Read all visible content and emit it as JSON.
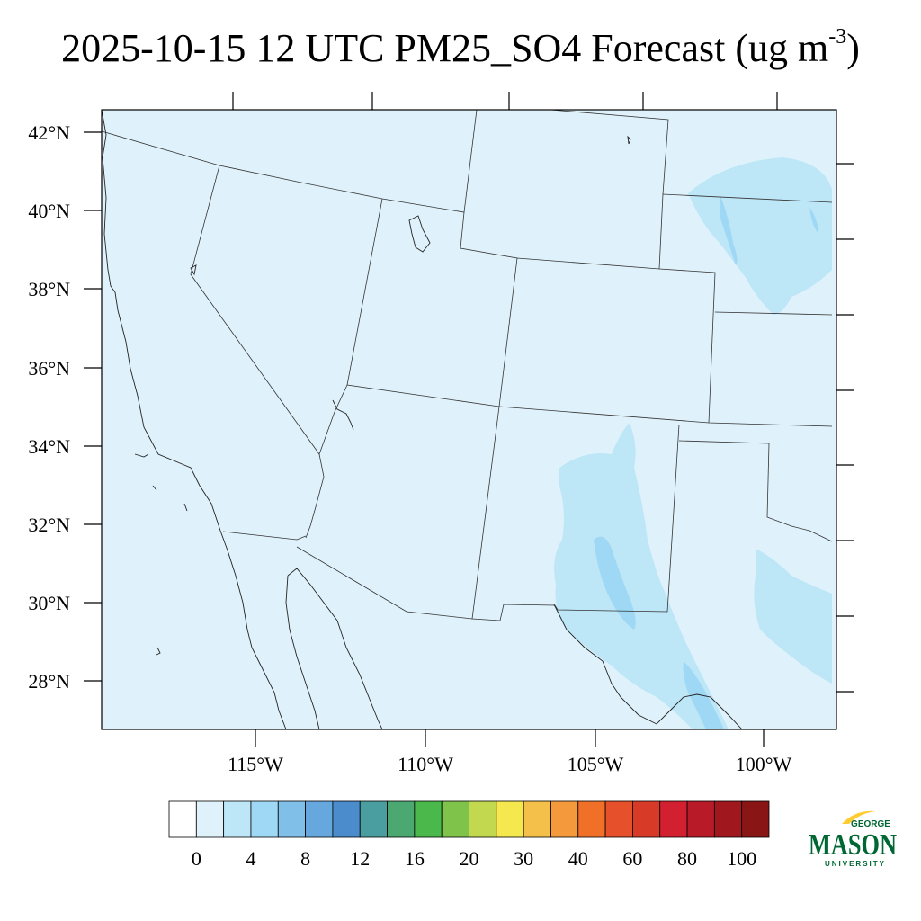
{
  "title": {
    "main": "2025-10-15 12 UTC PM25_SO4 Forecast (ug m",
    "sup": "-3",
    "close": ")"
  },
  "map": {
    "lat_labels": [
      "42°N",
      "40°N",
      "38°N",
      "36°N",
      "34°N",
      "32°N",
      "30°N",
      "28°N"
    ],
    "lon_labels": [
      "115°W",
      "110°W",
      "105°W",
      "100°W"
    ],
    "background_color": "#dff2fb",
    "low_concentration_color": "#bde6f7",
    "peak_concentration_color": "#9ed8f4"
  },
  "colorbar": {
    "colors": [
      "#ffffff",
      "#dff2fb",
      "#bde6f7",
      "#9ed8f4",
      "#80c0e8",
      "#66a8de",
      "#4a8ccc",
      "#4a9ea0",
      "#4aa870",
      "#4ab84a",
      "#80c34a",
      "#c2d84e",
      "#f5e84e",
      "#f5c04a",
      "#f59a3c",
      "#f07028",
      "#e6502a",
      "#d83a28",
      "#d22030",
      "#b81a28",
      "#a0181e",
      "#8a1515"
    ],
    "labels": [
      "0",
      "4",
      "8",
      "12",
      "16",
      "20",
      "30",
      "40",
      "60",
      "80",
      "100"
    ],
    "unit": "ug m-3"
  },
  "logo": {
    "top": "GEORGE",
    "main": "MASON",
    "bottom": "UNIVERSITY",
    "green": "#006633",
    "gold": "#ffcc33"
  }
}
